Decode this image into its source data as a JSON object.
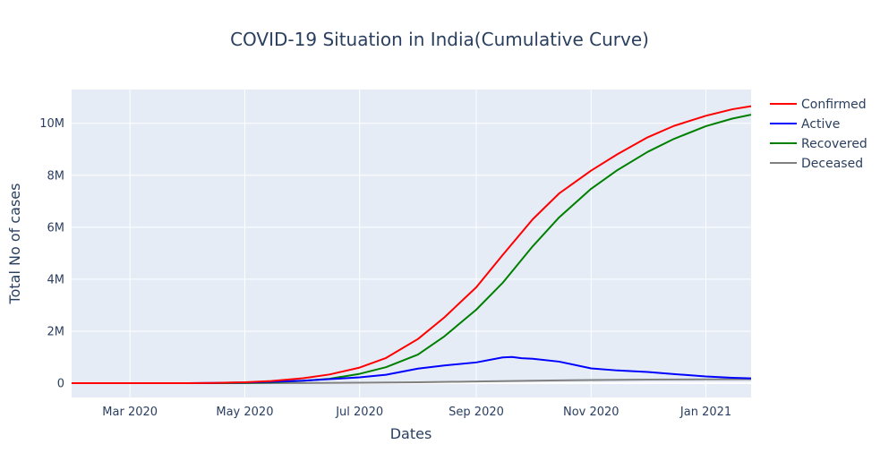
{
  "chart_data": {
    "type": "line",
    "title": "COVID-19 Situation in India(Cumulative Curve)",
    "xlabel": "Dates",
    "ylabel": "Total No of cases",
    "x_ticks": [
      {
        "date": "2020-03-01",
        "label": "Mar 2020"
      },
      {
        "date": "2020-05-01",
        "label": "May 2020"
      },
      {
        "date": "2020-07-01",
        "label": "Jul 2020"
      },
      {
        "date": "2020-09-01",
        "label": "Sep 2020"
      },
      {
        "date": "2020-11-01",
        "label": "Nov 2020"
      },
      {
        "date": "2021-01-01",
        "label": "Jan 2021"
      }
    ],
    "y_ticks": [
      {
        "value": 0,
        "label": "0"
      },
      {
        "value": 2000000,
        "label": "2M"
      },
      {
        "value": 4000000,
        "label": "4M"
      },
      {
        "value": 6000000,
        "label": "6M"
      },
      {
        "value": 8000000,
        "label": "8M"
      },
      {
        "value": 10000000,
        "label": "10M"
      }
    ],
    "xlim": [
      "2020-01-30",
      "2021-01-25"
    ],
    "ylim": [
      -550000,
      11300000
    ],
    "grid": true,
    "legend_position": "top-right",
    "series": [
      {
        "name": "Confirmed",
        "color": "#ff0000",
        "points": [
          [
            "2020-01-30",
            1
          ],
          [
            "2020-03-15",
            110
          ],
          [
            "2020-04-01",
            2000
          ],
          [
            "2020-04-15",
            12000
          ],
          [
            "2020-05-01",
            37000
          ],
          [
            "2020-05-15",
            85000
          ],
          [
            "2020-06-01",
            190000
          ],
          [
            "2020-06-15",
            335000
          ],
          [
            "2020-07-01",
            600000
          ],
          [
            "2020-07-15",
            970000
          ],
          [
            "2020-08-01",
            1700000
          ],
          [
            "2020-08-15",
            2530000
          ],
          [
            "2020-09-01",
            3690000
          ],
          [
            "2020-09-15",
            4930000
          ],
          [
            "2020-10-01",
            6310000
          ],
          [
            "2020-10-15",
            7300000
          ],
          [
            "2020-11-01",
            8180000
          ],
          [
            "2020-11-15",
            8810000
          ],
          [
            "2020-12-01",
            9460000
          ],
          [
            "2020-12-15",
            9900000
          ],
          [
            "2021-01-01",
            10290000
          ],
          [
            "2021-01-15",
            10540000
          ],
          [
            "2021-01-25",
            10660000
          ]
        ]
      },
      {
        "name": "Active",
        "color": "#0000ff",
        "points": [
          [
            "2020-01-30",
            1
          ],
          [
            "2020-03-15",
            100
          ],
          [
            "2020-04-01",
            1800
          ],
          [
            "2020-04-15",
            10000
          ],
          [
            "2020-05-01",
            26000
          ],
          [
            "2020-05-15",
            52000
          ],
          [
            "2020-06-01",
            95000
          ],
          [
            "2020-06-15",
            155000
          ],
          [
            "2020-07-01",
            225000
          ],
          [
            "2020-07-15",
            325000
          ],
          [
            "2020-08-01",
            560000
          ],
          [
            "2020-08-15",
            680000
          ],
          [
            "2020-09-01",
            800000
          ],
          [
            "2020-09-15",
            990000
          ],
          [
            "2020-09-20",
            1010000
          ],
          [
            "2020-09-25",
            960000
          ],
          [
            "2020-10-01",
            940000
          ],
          [
            "2020-10-15",
            830000
          ],
          [
            "2020-11-01",
            570000
          ],
          [
            "2020-11-15",
            490000
          ],
          [
            "2020-12-01",
            430000
          ],
          [
            "2020-12-15",
            350000
          ],
          [
            "2021-01-01",
            260000
          ],
          [
            "2021-01-15",
            210000
          ],
          [
            "2021-01-25",
            185000
          ]
        ]
      },
      {
        "name": "Recovered",
        "color": "#008000",
        "points": [
          [
            "2020-01-30",
            0
          ],
          [
            "2020-03-15",
            10
          ],
          [
            "2020-04-01",
            150
          ],
          [
            "2020-04-15",
            1500
          ],
          [
            "2020-05-01",
            10000
          ],
          [
            "2020-05-15",
            32000
          ],
          [
            "2020-06-01",
            90000
          ],
          [
            "2020-06-15",
            170000
          ],
          [
            "2020-07-01",
            360000
          ],
          [
            "2020-07-15",
            615000
          ],
          [
            "2020-08-01",
            1100000
          ],
          [
            "2020-08-15",
            1800000
          ],
          [
            "2020-09-01",
            2830000
          ],
          [
            "2020-09-15",
            3860000
          ],
          [
            "2020-10-01",
            5270000
          ],
          [
            "2020-10-15",
            6380000
          ],
          [
            "2020-11-01",
            7480000
          ],
          [
            "2020-11-15",
            8200000
          ],
          [
            "2020-12-01",
            8900000
          ],
          [
            "2020-12-15",
            9400000
          ],
          [
            "2021-01-01",
            9890000
          ],
          [
            "2021-01-15",
            10180000
          ],
          [
            "2021-01-25",
            10330000
          ]
        ]
      },
      {
        "name": "Deceased",
        "color": "#808080",
        "points": [
          [
            "2020-01-30",
            0
          ],
          [
            "2020-04-01",
            50
          ],
          [
            "2020-05-01",
            1200
          ],
          [
            "2020-06-01",
            5500
          ],
          [
            "2020-07-01",
            17800
          ],
          [
            "2020-08-01",
            37000
          ],
          [
            "2020-09-01",
            65000
          ],
          [
            "2020-10-01",
            98000
          ],
          [
            "2020-11-01",
            122000
          ],
          [
            "2020-12-01",
            138000
          ],
          [
            "2021-01-01",
            149000
          ],
          [
            "2021-01-25",
            153000
          ]
        ]
      }
    ]
  }
}
